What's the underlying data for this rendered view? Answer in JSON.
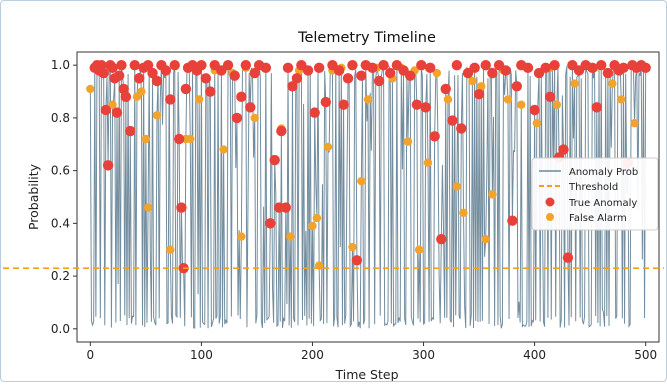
{
  "chart_data": {
    "type": "line",
    "title": "Telemetry Timeline",
    "xlabel": "Time Step",
    "ylabel": "Probability",
    "xlim": [
      -12,
      512
    ],
    "ylim": [
      -0.05,
      1.05
    ],
    "xticks": [
      0,
      100,
      200,
      300,
      400,
      500
    ],
    "yticks": [
      0.0,
      0.2,
      0.4,
      0.6,
      0.8,
      1.0
    ],
    "threshold": 0.23,
    "legend_position": "center-right",
    "grid": false,
    "colors": {
      "line": "#6c8799",
      "threshold": "#f0a21a",
      "true_anomaly": "#e8413a",
      "false_alarm": "#f2a32c"
    },
    "series": [
      {
        "name": "Anomaly Prob",
        "kind": "line"
      },
      {
        "name": "Threshold",
        "kind": "hline"
      },
      {
        "name": "True Anomaly",
        "kind": "scatter",
        "points": [
          [
            4,
            0.99
          ],
          [
            6,
            1.0
          ],
          [
            8,
            0.98
          ],
          [
            10,
            1.0
          ],
          [
            12,
            0.97
          ],
          [
            14,
            0.83
          ],
          [
            16,
            0.62
          ],
          [
            18,
            1.0
          ],
          [
            20,
            0.99
          ],
          [
            22,
            0.95
          ],
          [
            24,
            0.82
          ],
          [
            26,
            0.96
          ],
          [
            28,
            1.0
          ],
          [
            30,
            0.91
          ],
          [
            32,
            0.88
          ],
          [
            36,
            0.75
          ],
          [
            40,
            1.0
          ],
          [
            44,
            0.95
          ],
          [
            48,
            0.99
          ],
          [
            52,
            1.0
          ],
          [
            56,
            0.97
          ],
          [
            60,
            0.94
          ],
          [
            64,
            1.0
          ],
          [
            68,
            0.98
          ],
          [
            72,
            0.87
          ],
          [
            76,
            1.0
          ],
          [
            80,
            0.72
          ],
          [
            82,
            0.46
          ],
          [
            84,
            0.23
          ],
          [
            86,
            0.91
          ],
          [
            88,
            0.99
          ],
          [
            92,
            1.0
          ],
          [
            96,
            0.98
          ],
          [
            100,
            1.0
          ],
          [
            104,
            0.95
          ],
          [
            108,
            0.9
          ],
          [
            112,
            1.0
          ],
          [
            118,
            0.98
          ],
          [
            124,
            1.0
          ],
          [
            130,
            0.96
          ],
          [
            132,
            0.8
          ],
          [
            136,
            0.88
          ],
          [
            140,
            1.0
          ],
          [
            144,
            0.84
          ],
          [
            148,
            0.97
          ],
          [
            152,
            1.0
          ],
          [
            158,
            0.99
          ],
          [
            162,
            0.4
          ],
          [
            166,
            0.64
          ],
          [
            170,
            0.46
          ],
          [
            172,
            0.75
          ],
          [
            176,
            0.46
          ],
          [
            178,
            0.99
          ],
          [
            182,
            0.92
          ],
          [
            186,
            0.95
          ],
          [
            190,
            1.0
          ],
          [
            196,
            0.98
          ],
          [
            202,
            0.82
          ],
          [
            206,
            0.99
          ],
          [
            212,
            0.86
          ],
          [
            218,
            1.0
          ],
          [
            224,
            0.98
          ],
          [
            228,
            0.85
          ],
          [
            232,
            0.95
          ],
          [
            236,
            1.0
          ],
          [
            240,
            0.26
          ],
          [
            244,
            0.96
          ],
          [
            248,
            1.0
          ],
          [
            254,
            0.99
          ],
          [
            260,
            0.94
          ],
          [
            264,
            1.0
          ],
          [
            270,
            0.97
          ],
          [
            276,
            1.0
          ],
          [
            282,
            0.98
          ],
          [
            288,
            0.96
          ],
          [
            294,
            0.85
          ],
          [
            298,
            1.0
          ],
          [
            302,
            0.84
          ],
          [
            306,
            0.99
          ],
          [
            310,
            0.73
          ],
          [
            316,
            0.34
          ],
          [
            320,
            0.91
          ],
          [
            326,
            0.79
          ],
          [
            330,
            1.0
          ],
          [
            334,
            0.76
          ],
          [
            340,
            0.97
          ],
          [
            346,
            0.99
          ],
          [
            350,
            0.89
          ],
          [
            356,
            1.0
          ],
          [
            362,
            0.97
          ],
          [
            368,
            1.0
          ],
          [
            374,
            0.98
          ],
          [
            380,
            0.41
          ],
          [
            384,
            0.92
          ],
          [
            388,
            1.0
          ],
          [
            394,
            0.99
          ],
          [
            400,
            0.83
          ],
          [
            404,
            0.97
          ],
          [
            410,
            0.99
          ],
          [
            414,
            0.88
          ],
          [
            418,
            1.0
          ],
          [
            422,
            0.65
          ],
          [
            426,
            0.68
          ],
          [
            430,
            0.27
          ],
          [
            434,
            1.0
          ],
          [
            440,
            0.98
          ],
          [
            446,
            1.0
          ],
          [
            452,
            0.99
          ],
          [
            456,
            0.84
          ],
          [
            460,
            1.0
          ],
          [
            466,
            0.97
          ],
          [
            472,
            1.0
          ],
          [
            476,
            0.98
          ],
          [
            480,
            0.99
          ],
          [
            484,
            0.63
          ],
          [
            488,
            1.0
          ],
          [
            492,
            0.99
          ],
          [
            496,
            1.0
          ],
          [
            500,
            0.99
          ]
        ]
      },
      {
        "name": "False Alarm",
        "kind": "scatter",
        "points": [
          [
            0,
            0.91
          ],
          [
            20,
            0.85
          ],
          [
            42,
            0.88
          ],
          [
            46,
            0.9
          ],
          [
            50,
            0.72
          ],
          [
            52,
            0.46
          ],
          [
            60,
            0.81
          ],
          [
            64,
            1.0
          ],
          [
            72,
            0.3
          ],
          [
            86,
            0.72
          ],
          [
            90,
            0.72
          ],
          [
            98,
            0.87
          ],
          [
            112,
            0.98
          ],
          [
            120,
            0.68
          ],
          [
            128,
            0.97
          ],
          [
            136,
            0.35
          ],
          [
            140,
            0.99
          ],
          [
            148,
            0.8
          ],
          [
            172,
            0.76
          ],
          [
            180,
            0.35
          ],
          [
            188,
            0.98
          ],
          [
            200,
            0.39
          ],
          [
            204,
            0.42
          ],
          [
            206,
            0.24
          ],
          [
            214,
            0.69
          ],
          [
            218,
            0.98
          ],
          [
            226,
            0.99
          ],
          [
            236,
            0.31
          ],
          [
            244,
            0.56
          ],
          [
            250,
            0.87
          ],
          [
            258,
            0.99
          ],
          [
            272,
            0.95
          ],
          [
            280,
            0.99
          ],
          [
            286,
            0.71
          ],
          [
            292,
            0.98
          ],
          [
            296,
            0.3
          ],
          [
            304,
            0.63
          ],
          [
            312,
            0.97
          ],
          [
            322,
            0.87
          ],
          [
            330,
            0.54
          ],
          [
            336,
            0.44
          ],
          [
            344,
            0.94
          ],
          [
            352,
            0.92
          ],
          [
            356,
            0.34
          ],
          [
            362,
            0.51
          ],
          [
            372,
            0.98
          ],
          [
            376,
            0.87
          ],
          [
            388,
            0.85
          ],
          [
            402,
            0.78
          ],
          [
            414,
            0.99
          ],
          [
            420,
            0.85
          ],
          [
            436,
            0.93
          ],
          [
            454,
            0.99
          ],
          [
            470,
            0.93
          ],
          [
            478,
            0.87
          ],
          [
            490,
            0.78
          ]
        ]
      }
    ]
  }
}
